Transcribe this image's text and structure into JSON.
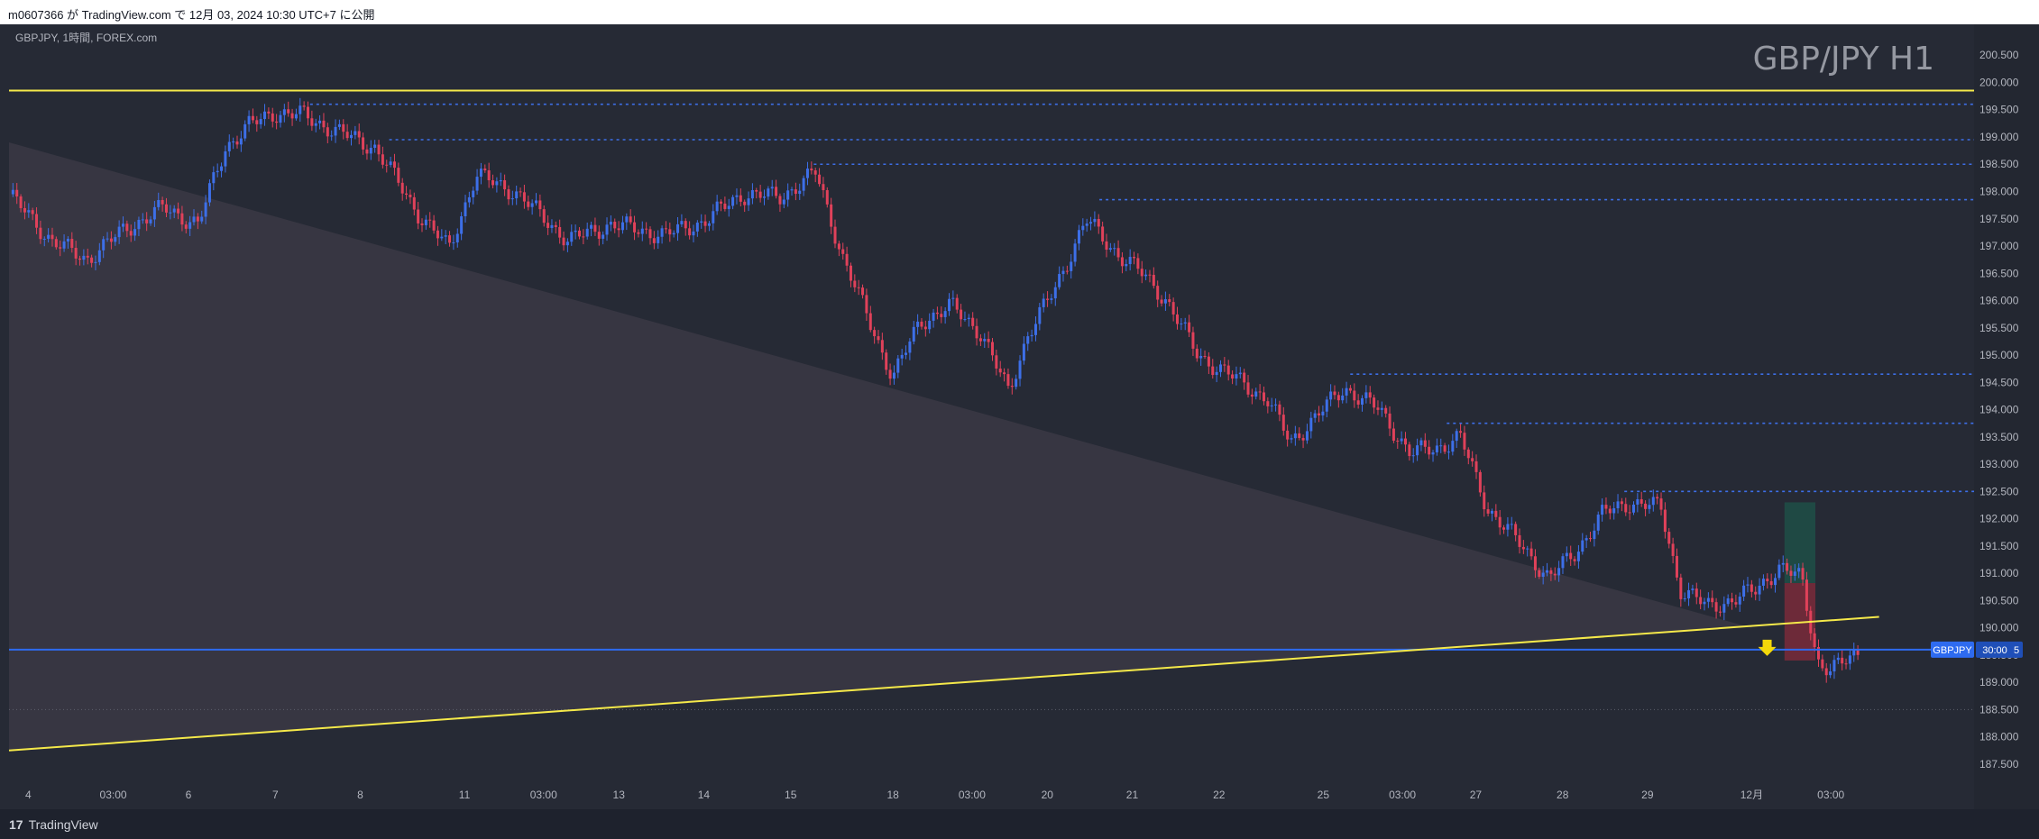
{
  "header": {
    "published": "m0607366 が TradingView.com で 12月 03, 2024 10:30 UTC+7 に公開"
  },
  "footer": {
    "brand": "TradingView",
    "logo_icon": "tradingview-logo-icon"
  },
  "colors": {
    "background": "#262a35",
    "up_candle": "#3d6fe8",
    "down_candle": "#e0415a",
    "yellow_line": "#f5e94a",
    "blue_line": "#2e6bf0",
    "dotted": "#3d6fe8",
    "wedge": "#3b3844",
    "tp_zone": "#1f4d46",
    "sl_zone": "#7a2a3a"
  },
  "chart_data": {
    "type": "candlestick",
    "symbol_label": "GBPJPY, 1時間, FOREX.com",
    "title": "GBP/JPY H1",
    "price_label": "GBPJPY",
    "countdown": "30:00",
    "countdown_suffix": "5",
    "ylim": [
      187.35,
      200.9
    ],
    "y_ticks": [
      "187.500",
      "188.000",
      "188.500",
      "189.000",
      "189.500",
      "190.000",
      "190.500",
      "191.000",
      "191.500",
      "192.000",
      "192.500",
      "193.000",
      "193.500",
      "194.000",
      "194.500",
      "195.000",
      "195.500",
      "196.000",
      "196.500",
      "197.000",
      "197.500",
      "198.000",
      "198.500",
      "199.000",
      "199.500",
      "200.000",
      "200.500"
    ],
    "x_ticks": [
      {
        "label": "4",
        "pos": 0.01
      },
      {
        "label": "03:00",
        "pos": 0.054
      },
      {
        "label": "6",
        "pos": 0.093
      },
      {
        "label": "7",
        "pos": 0.138
      },
      {
        "label": "8",
        "pos": 0.182
      },
      {
        "label": "11",
        "pos": 0.236
      },
      {
        "label": "03:00",
        "pos": 0.277
      },
      {
        "label": "13",
        "pos": 0.316
      },
      {
        "label": "14",
        "pos": 0.36
      },
      {
        "label": "15",
        "pos": 0.405
      },
      {
        "label": "18",
        "pos": 0.458
      },
      {
        "label": "03:00",
        "pos": 0.499
      },
      {
        "label": "20",
        "pos": 0.538
      },
      {
        "label": "21",
        "pos": 0.582
      },
      {
        "label": "22",
        "pos": 0.627
      },
      {
        "label": "25",
        "pos": 0.681
      },
      {
        "label": "03:00",
        "pos": 0.722
      },
      {
        "label": "27",
        "pos": 0.76
      },
      {
        "label": "28",
        "pos": 0.805
      },
      {
        "label": "29",
        "pos": 0.849
      },
      {
        "label": "12月",
        "pos": 0.903
      },
      {
        "label": "03:00",
        "pos": 0.944
      }
    ],
    "keypoints": [
      [
        0.0,
        197.95
      ],
      [
        0.022,
        197.1
      ],
      [
        0.04,
        196.75
      ],
      [
        0.06,
        197.3
      ],
      [
        0.08,
        197.7
      ],
      [
        0.098,
        197.4
      ],
      [
        0.112,
        198.8
      ],
      [
        0.124,
        199.2
      ],
      [
        0.138,
        199.45
      ],
      [
        0.152,
        199.4
      ],
      [
        0.17,
        199.1
      ],
      [
        0.19,
        198.8
      ],
      [
        0.212,
        197.6
      ],
      [
        0.228,
        196.95
      ],
      [
        0.242,
        198.3
      ],
      [
        0.262,
        198.0
      ],
      [
        0.29,
        197.1
      ],
      [
        0.312,
        197.4
      ],
      [
        0.34,
        197.2
      ],
      [
        0.36,
        197.45
      ],
      [
        0.38,
        197.95
      ],
      [
        0.4,
        197.9
      ],
      [
        0.418,
        198.35
      ],
      [
        0.432,
        196.8
      ],
      [
        0.446,
        195.6
      ],
      [
        0.458,
        194.6
      ],
      [
        0.472,
        195.6
      ],
      [
        0.488,
        195.9
      ],
      [
        0.504,
        195.4
      ],
      [
        0.518,
        194.3
      ],
      [
        0.528,
        195.4
      ],
      [
        0.542,
        196.2
      ],
      [
        0.558,
        197.5
      ],
      [
        0.57,
        197.0
      ],
      [
        0.584,
        196.6
      ],
      [
        0.6,
        196.0
      ],
      [
        0.616,
        195.0
      ],
      [
        0.634,
        194.6
      ],
      [
        0.652,
        194.2
      ],
      [
        0.664,
        193.4
      ],
      [
        0.678,
        193.9
      ],
      [
        0.692,
        194.4
      ],
      [
        0.71,
        194.0
      ],
      [
        0.726,
        193.2
      ],
      [
        0.74,
        193.3
      ],
      [
        0.752,
        193.5
      ],
      [
        0.766,
        192.2
      ],
      [
        0.784,
        191.5
      ],
      [
        0.798,
        190.9
      ],
      [
        0.812,
        191.4
      ],
      [
        0.826,
        192.1
      ],
      [
        0.84,
        192.3
      ],
      [
        0.856,
        192.2
      ],
      [
        0.866,
        190.7
      ],
      [
        0.88,
        190.4
      ],
      [
        0.893,
        190.5
      ],
      [
        0.905,
        190.7
      ],
      [
        0.917,
        191.1
      ],
      [
        0.929,
        190.9
      ],
      [
        0.937,
        189.4
      ],
      [
        0.944,
        189.2
      ],
      [
        0.95,
        189.35
      ],
      [
        0.958,
        189.55
      ]
    ],
    "wedge_top_start": {
      "t": 0.0,
      "price": 198.9
    },
    "wedge_apex": {
      "t": 0.903,
      "price": 190.0
    },
    "yellow_h_line": 199.85,
    "yellow_diag_line": {
      "t1": 0.0,
      "p1": 187.75,
      "t2": 0.969,
      "p2": 190.2
    },
    "blue_h_line": 189.6,
    "dotted_levels": [
      {
        "price": 199.6,
        "t_start": 0.156
      },
      {
        "price": 198.95,
        "t_start": 0.197
      },
      {
        "price": 198.5,
        "t_start": 0.417
      },
      {
        "price": 197.85,
        "t_start": 0.565
      },
      {
        "price": 194.65,
        "t_start": 0.695
      },
      {
        "price": 193.75,
        "t_start": 0.745
      },
      {
        "price": 192.5,
        "t_start": 0.837
      }
    ],
    "gray_dotted_level": 188.5,
    "tp_zone": {
      "t1": 0.92,
      "t2": 0.936,
      "p1": 190.82,
      "p2": 192.3
    },
    "sl_zone": {
      "t1": 0.92,
      "t2": 0.936,
      "p1": 189.4,
      "p2": 190.82
    },
    "arrow": {
      "t": 0.911,
      "price": 189.55
    }
  }
}
